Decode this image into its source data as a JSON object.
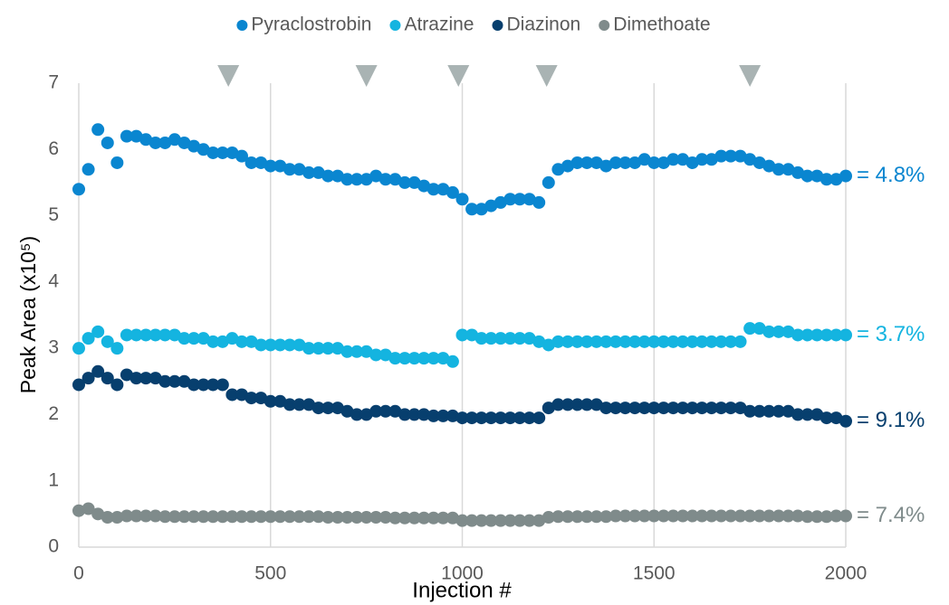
{
  "chart_data": {
    "type": "scatter",
    "xlabel": "Injection #",
    "ylabel": "Peak Area (x10⁵)",
    "xlim": [
      0,
      2000
    ],
    "xticks": [
      0,
      500,
      1000,
      1500,
      2000
    ],
    "ylim": [
      0,
      7
    ],
    "yticks": [
      0,
      1,
      2,
      3,
      4,
      5,
      6,
      7
    ],
    "grid": "x",
    "legend": "top",
    "event_markers": [
      390,
      750,
      990,
      1220,
      1750
    ],
    "event_marker_color": "#a9b3b3",
    "x": [
      0,
      25,
      50,
      75,
      100,
      125,
      150,
      175,
      200,
      225,
      250,
      275,
      300,
      325,
      350,
      375,
      400,
      425,
      450,
      475,
      500,
      525,
      550,
      575,
      600,
      625,
      650,
      675,
      700,
      725,
      750,
      775,
      800,
      825,
      850,
      875,
      900,
      925,
      950,
      975,
      1000,
      1025,
      1050,
      1075,
      1100,
      1125,
      1150,
      1175,
      1200,
      1225,
      1250,
      1275,
      1300,
      1325,
      1350,
      1375,
      1400,
      1425,
      1450,
      1475,
      1500,
      1525,
      1550,
      1575,
      1600,
      1625,
      1650,
      1675,
      1700,
      1725,
      1750,
      1775,
      1800,
      1825,
      1850,
      1875,
      1900,
      1925,
      1950,
      1975,
      2000
    ],
    "series": [
      {
        "name": "Pyraclostrobin",
        "color": "#0a86d0",
        "annotation": "= 4.8%",
        "values": [
          5.4,
          5.7,
          6.3,
          6.1,
          5.8,
          6.2,
          6.2,
          6.15,
          6.1,
          6.1,
          6.15,
          6.1,
          6.05,
          6.0,
          5.95,
          5.95,
          5.95,
          5.9,
          5.8,
          5.8,
          5.75,
          5.75,
          5.7,
          5.7,
          5.65,
          5.65,
          5.6,
          5.6,
          5.55,
          5.55,
          5.55,
          5.6,
          5.55,
          5.55,
          5.5,
          5.5,
          5.45,
          5.4,
          5.4,
          5.35,
          5.25,
          5.1,
          5.1,
          5.15,
          5.2,
          5.25,
          5.25,
          5.25,
          5.2,
          5.5,
          5.7,
          5.75,
          5.8,
          5.8,
          5.8,
          5.75,
          5.8,
          5.8,
          5.8,
          5.85,
          5.8,
          5.8,
          5.85,
          5.85,
          5.8,
          5.85,
          5.85,
          5.9,
          5.9,
          5.9,
          5.85,
          5.8,
          5.75,
          5.7,
          5.7,
          5.65,
          5.6,
          5.6,
          5.55,
          5.55,
          5.6
        ]
      },
      {
        "name": "Atrazine",
        "color": "#14b4e0",
        "annotation": "= 3.7%",
        "values": [
          3.0,
          3.15,
          3.25,
          3.1,
          3.0,
          3.2,
          3.2,
          3.2,
          3.2,
          3.2,
          3.2,
          3.15,
          3.15,
          3.15,
          3.1,
          3.1,
          3.15,
          3.1,
          3.1,
          3.05,
          3.05,
          3.05,
          3.05,
          3.05,
          3.0,
          3.0,
          3.0,
          3.0,
          2.95,
          2.95,
          2.95,
          2.9,
          2.9,
          2.85,
          2.85,
          2.85,
          2.85,
          2.85,
          2.85,
          2.8,
          3.2,
          3.2,
          3.15,
          3.15,
          3.15,
          3.15,
          3.15,
          3.15,
          3.1,
          3.05,
          3.1,
          3.1,
          3.1,
          3.1,
          3.1,
          3.1,
          3.1,
          3.1,
          3.1,
          3.1,
          3.1,
          3.1,
          3.1,
          3.1,
          3.1,
          3.1,
          3.1,
          3.1,
          3.1,
          3.1,
          3.3,
          3.3,
          3.25,
          3.25,
          3.25,
          3.2,
          3.2,
          3.2,
          3.2,
          3.2,
          3.2
        ]
      },
      {
        "name": "Diazinon",
        "color": "#073f6e",
        "annotation": "= 9.1%",
        "values": [
          2.45,
          2.55,
          2.65,
          2.55,
          2.45,
          2.6,
          2.55,
          2.55,
          2.55,
          2.5,
          2.5,
          2.5,
          2.45,
          2.45,
          2.45,
          2.45,
          2.3,
          2.3,
          2.25,
          2.25,
          2.2,
          2.2,
          2.15,
          2.15,
          2.15,
          2.1,
          2.1,
          2.1,
          2.05,
          2.0,
          2.0,
          2.05,
          2.05,
          2.05,
          2.0,
          2.0,
          2.0,
          1.98,
          1.98,
          1.98,
          1.95,
          1.95,
          1.95,
          1.95,
          1.95,
          1.95,
          1.95,
          1.95,
          1.95,
          2.1,
          2.15,
          2.15,
          2.15,
          2.15,
          2.15,
          2.1,
          2.1,
          2.1,
          2.1,
          2.1,
          2.1,
          2.1,
          2.1,
          2.1,
          2.1,
          2.1,
          2.1,
          2.1,
          2.1,
          2.1,
          2.05,
          2.05,
          2.05,
          2.05,
          2.05,
          2.0,
          2.0,
          2.0,
          1.95,
          1.95,
          1.9
        ]
      },
      {
        "name": "Dimethoate",
        "color": "#7f8b8b",
        "annotation": "= 7.4%",
        "values": [
          0.55,
          0.58,
          0.5,
          0.45,
          0.45,
          0.47,
          0.47,
          0.47,
          0.47,
          0.46,
          0.46,
          0.46,
          0.46,
          0.46,
          0.46,
          0.46,
          0.46,
          0.46,
          0.46,
          0.46,
          0.46,
          0.46,
          0.46,
          0.46,
          0.46,
          0.46,
          0.45,
          0.45,
          0.45,
          0.45,
          0.45,
          0.45,
          0.45,
          0.44,
          0.44,
          0.44,
          0.44,
          0.44,
          0.44,
          0.44,
          0.4,
          0.4,
          0.4,
          0.4,
          0.4,
          0.4,
          0.4,
          0.4,
          0.4,
          0.45,
          0.46,
          0.46,
          0.46,
          0.46,
          0.46,
          0.46,
          0.47,
          0.47,
          0.47,
          0.47,
          0.47,
          0.47,
          0.47,
          0.47,
          0.47,
          0.47,
          0.47,
          0.47,
          0.47,
          0.47,
          0.47,
          0.47,
          0.47,
          0.47,
          0.47,
          0.47,
          0.46,
          0.46,
          0.46,
          0.47,
          0.47
        ]
      }
    ]
  }
}
